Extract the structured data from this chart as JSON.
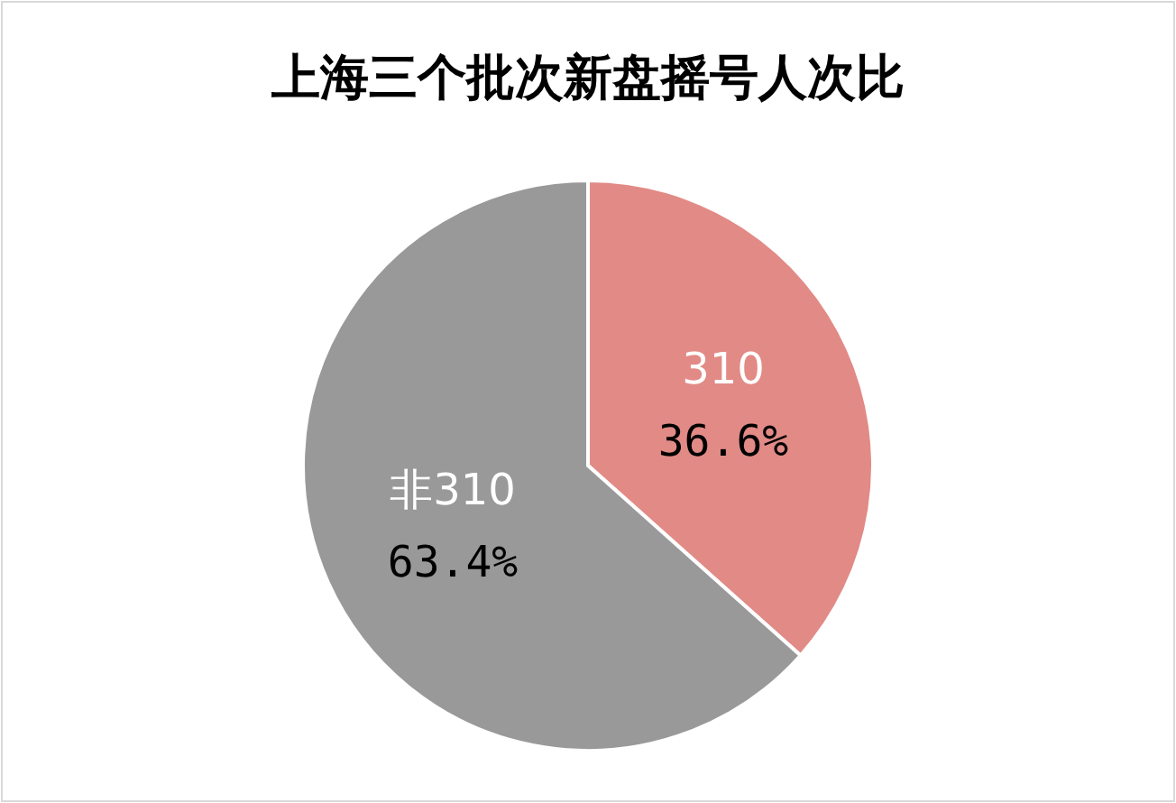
{
  "chart_data": {
    "type": "pie",
    "title": "上海三个批次新盘摇号人次比",
    "categories": [
      "310",
      "非310"
    ],
    "values": [
      36.6,
      63.4
    ],
    "colors": [
      "#e28a86",
      "#999999"
    ],
    "value_labels": [
      "36.6%",
      "63.4%"
    ]
  }
}
